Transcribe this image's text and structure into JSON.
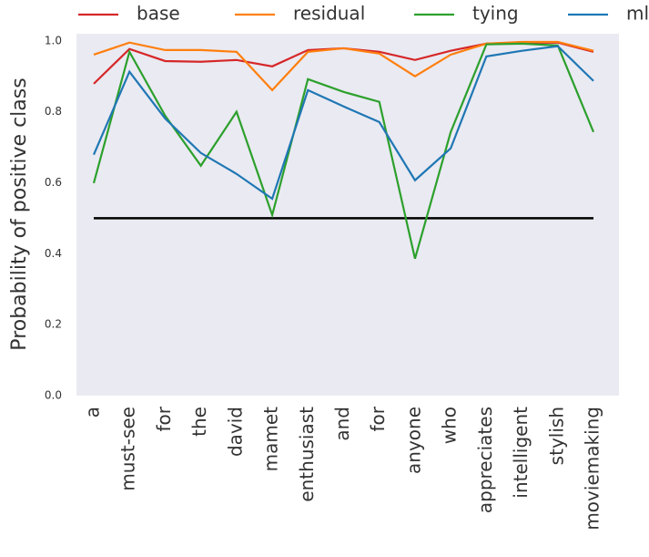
{
  "chart_data": {
    "type": "line",
    "y_label": "Probability of positive class",
    "categories": [
      "a",
      "must-see",
      "for",
      "the",
      "david",
      "mamet",
      "enthusiast",
      "and",
      "for",
      "anyone",
      "who",
      "appreciates",
      "intelligent",
      "stylish",
      "moviemaking"
    ],
    "series": [
      {
        "name": "base",
        "color": "#d62728",
        "values": [
          0.879,
          0.977,
          0.943,
          0.941,
          0.946,
          0.928,
          0.974,
          0.979,
          0.969,
          0.946,
          0.972,
          0.992,
          0.995,
          0.995,
          0.969
        ]
      },
      {
        "name": "residual",
        "color": "#ff7f0e",
        "values": [
          0.961,
          0.995,
          0.974,
          0.974,
          0.969,
          0.861,
          0.969,
          0.979,
          0.964,
          0.9,
          0.961,
          0.992,
          0.997,
          0.997,
          0.972
        ]
      },
      {
        "name": "tying",
        "color": "#2ca02c",
        "values": [
          0.599,
          0.969,
          0.789,
          0.648,
          0.8,
          0.509,
          0.892,
          0.856,
          0.828,
          0.386,
          0.743,
          0.99,
          0.992,
          0.987,
          0.743
        ]
      },
      {
        "name": "mlm",
        "color": "#1f77b4",
        "values": [
          0.679,
          0.913,
          0.781,
          0.684,
          0.625,
          0.555,
          0.861,
          0.815,
          0.771,
          0.607,
          0.697,
          0.956,
          0.972,
          0.985,
          0.887
        ]
      }
    ],
    "reference_line": {
      "value": 0.5,
      "color": "#000000"
    },
    "ylim": [
      0,
      1.02
    ],
    "yticks": [
      {
        "value": 0,
        "label": "0.0"
      },
      0.2,
      0.4,
      0.6,
      0.8,
      {
        "value": 1,
        "label": "1.0"
      }
    ],
    "grid": false,
    "legend": "top"
  }
}
